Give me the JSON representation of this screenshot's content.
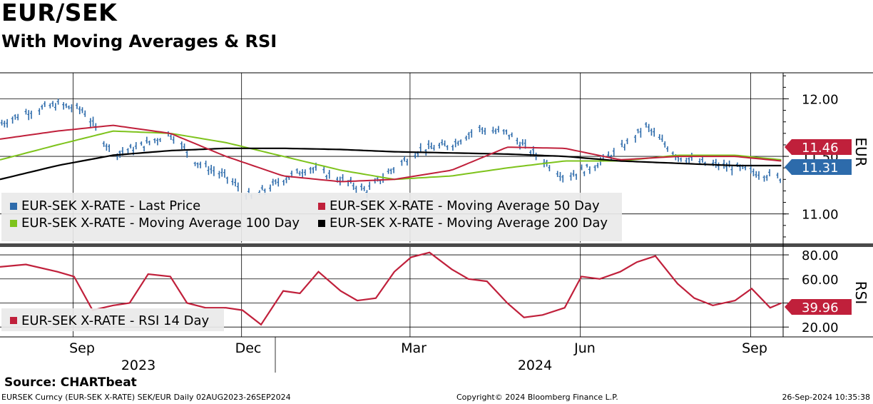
{
  "title": "EUR/SEK",
  "subtitle": "With Moving Averages & RSI",
  "source": "Source:  CHARTbeat",
  "footer": {
    "left": "EURSEK Curncy (EUR-SEK X-RATE) SEK/EUR  Daily 02AUG2023-26SEP2024",
    "center": "Copyright© 2024 Bloomberg Finance L.P.",
    "right": "26-Sep-2024 10:35:38"
  },
  "chart_data": [
    {
      "type": "line",
      "panel": "price",
      "ylabel": "EUR",
      "ylim": [
        10.75,
        12.22
      ],
      "yticks": [
        11.0,
        11.5,
        12.0
      ],
      "ytick_labels": [
        "11.00",
        "11.50",
        "12.00"
      ],
      "grid": true,
      "legend_position": "bottom-left",
      "x_ticks": [
        "Sep",
        "Dec",
        "Mar",
        "Jun",
        "Sep"
      ],
      "x_years": [
        "2023",
        "2024"
      ],
      "series": [
        {
          "name": "EUR-SEK X-RATE - Last Price",
          "style": "bars",
          "color": "#2d6bab",
          "x": [
            "2023-08-01",
            "2023-08-15",
            "2023-09-01",
            "2023-09-15",
            "2023-10-01",
            "2023-10-15",
            "2023-11-01",
            "2023-11-15",
            "2023-12-01",
            "2023-12-15",
            "2024-01-01",
            "2024-01-15",
            "2024-02-01",
            "2024-02-15",
            "2024-03-01",
            "2024-03-15",
            "2024-04-01",
            "2024-04-15",
            "2024-05-01",
            "2024-05-15",
            "2024-06-01",
            "2024-06-15",
            "2024-07-01",
            "2024-07-15",
            "2024-08-01",
            "2024-08-15",
            "2024-09-01",
            "2024-09-15",
            "2024-09-26"
          ],
          "values": [
            11.78,
            11.88,
            11.95,
            11.9,
            11.52,
            11.58,
            11.7,
            11.45,
            11.32,
            11.14,
            11.3,
            11.4,
            11.3,
            11.2,
            11.4,
            11.56,
            11.6,
            11.74,
            11.7,
            11.53,
            11.32,
            11.4,
            11.56,
            11.76,
            11.5,
            11.44,
            11.4,
            11.35,
            11.31
          ]
        },
        {
          "name": "EUR-SEK X-RATE - Moving Average 50 Day",
          "color": "#c0203b",
          "x": [
            "2023-08-01",
            "2023-09-01",
            "2023-10-01",
            "2023-11-01",
            "2023-12-01",
            "2024-01-01",
            "2024-02-01",
            "2024-03-01",
            "2024-04-01",
            "2024-05-01",
            "2024-06-01",
            "2024-07-01",
            "2024-08-01",
            "2024-09-01",
            "2024-09-26"
          ],
          "values": [
            11.65,
            11.72,
            11.77,
            11.7,
            11.5,
            11.33,
            11.28,
            11.3,
            11.38,
            11.58,
            11.57,
            11.47,
            11.5,
            11.5,
            11.46
          ]
        },
        {
          "name": "EUR-SEK X-RATE - Moving Average 100 Day",
          "color": "#7ec31c",
          "x": [
            "2023-08-01",
            "2023-09-01",
            "2023-10-01",
            "2023-11-01",
            "2023-12-01",
            "2024-01-01",
            "2024-02-01",
            "2024-03-01",
            "2024-04-01",
            "2024-05-01",
            "2024-06-01",
            "2024-07-01",
            "2024-08-01",
            "2024-09-01",
            "2024-09-26"
          ],
          "values": [
            11.47,
            11.6,
            11.72,
            11.7,
            11.62,
            11.5,
            11.38,
            11.3,
            11.33,
            11.4,
            11.46,
            11.46,
            11.51,
            11.51,
            11.47
          ]
        },
        {
          "name": "EUR-SEK X-RATE - Moving Average 200 Day",
          "color": "#000000",
          "x": [
            "2023-08-01",
            "2023-09-01",
            "2023-10-01",
            "2023-11-01",
            "2023-12-01",
            "2024-01-01",
            "2024-02-01",
            "2024-03-01",
            "2024-04-01",
            "2024-05-01",
            "2024-06-01",
            "2024-07-01",
            "2024-08-01",
            "2024-09-01",
            "2024-09-26"
          ],
          "values": [
            11.3,
            11.42,
            11.51,
            11.55,
            11.57,
            11.57,
            11.56,
            11.54,
            11.53,
            11.52,
            11.5,
            11.46,
            11.44,
            11.42,
            11.42
          ]
        }
      ],
      "last_value_labels": [
        {
          "value": "11.46",
          "color": "#c0203b"
        },
        {
          "value": "11.31",
          "color": "#2d6bab"
        }
      ]
    },
    {
      "type": "line",
      "panel": "rsi",
      "ylabel": "RSI",
      "ylim": [
        13,
        83
      ],
      "yticks": [
        20,
        40,
        60,
        80
      ],
      "ytick_labels": [
        "20.00",
        "",
        "60.00",
        "80.00"
      ],
      "grid": true,
      "legend_position": "bottom-left",
      "series": [
        {
          "name": "EUR-SEK X-RATE - RSI 14 Day",
          "color": "#c0203b",
          "x": [
            "2023-08-01",
            "2023-08-15",
            "2023-09-01",
            "2023-09-10",
            "2023-09-20",
            "2023-10-01",
            "2023-10-10",
            "2023-10-20",
            "2023-11-01",
            "2023-11-10",
            "2023-11-20",
            "2023-12-01",
            "2023-12-10",
            "2023-12-20",
            "2024-01-01",
            "2024-01-10",
            "2024-01-20",
            "2024-02-01",
            "2024-02-10",
            "2024-02-20",
            "2024-03-01",
            "2024-03-10",
            "2024-03-20",
            "2024-04-01",
            "2024-04-10",
            "2024-04-20",
            "2024-05-01",
            "2024-05-10",
            "2024-05-20",
            "2024-06-01",
            "2024-06-10",
            "2024-06-20",
            "2024-07-01",
            "2024-07-10",
            "2024-07-20",
            "2024-08-01",
            "2024-08-10",
            "2024-08-20",
            "2024-09-01",
            "2024-09-10",
            "2024-09-20",
            "2024-09-26"
          ],
          "values": [
            70,
            72,
            66,
            62,
            34,
            38,
            40,
            64,
            62,
            40,
            36,
            36,
            34,
            22,
            50,
            48,
            66,
            50,
            42,
            44,
            66,
            78,
            82,
            68,
            60,
            58,
            40,
            28,
            30,
            36,
            62,
            60,
            66,
            74,
            79,
            56,
            44,
            38,
            42,
            52,
            36,
            39.96
          ]
        }
      ],
      "last_value_labels": [
        {
          "value": "39.96",
          "color": "#c0203b"
        }
      ]
    }
  ]
}
